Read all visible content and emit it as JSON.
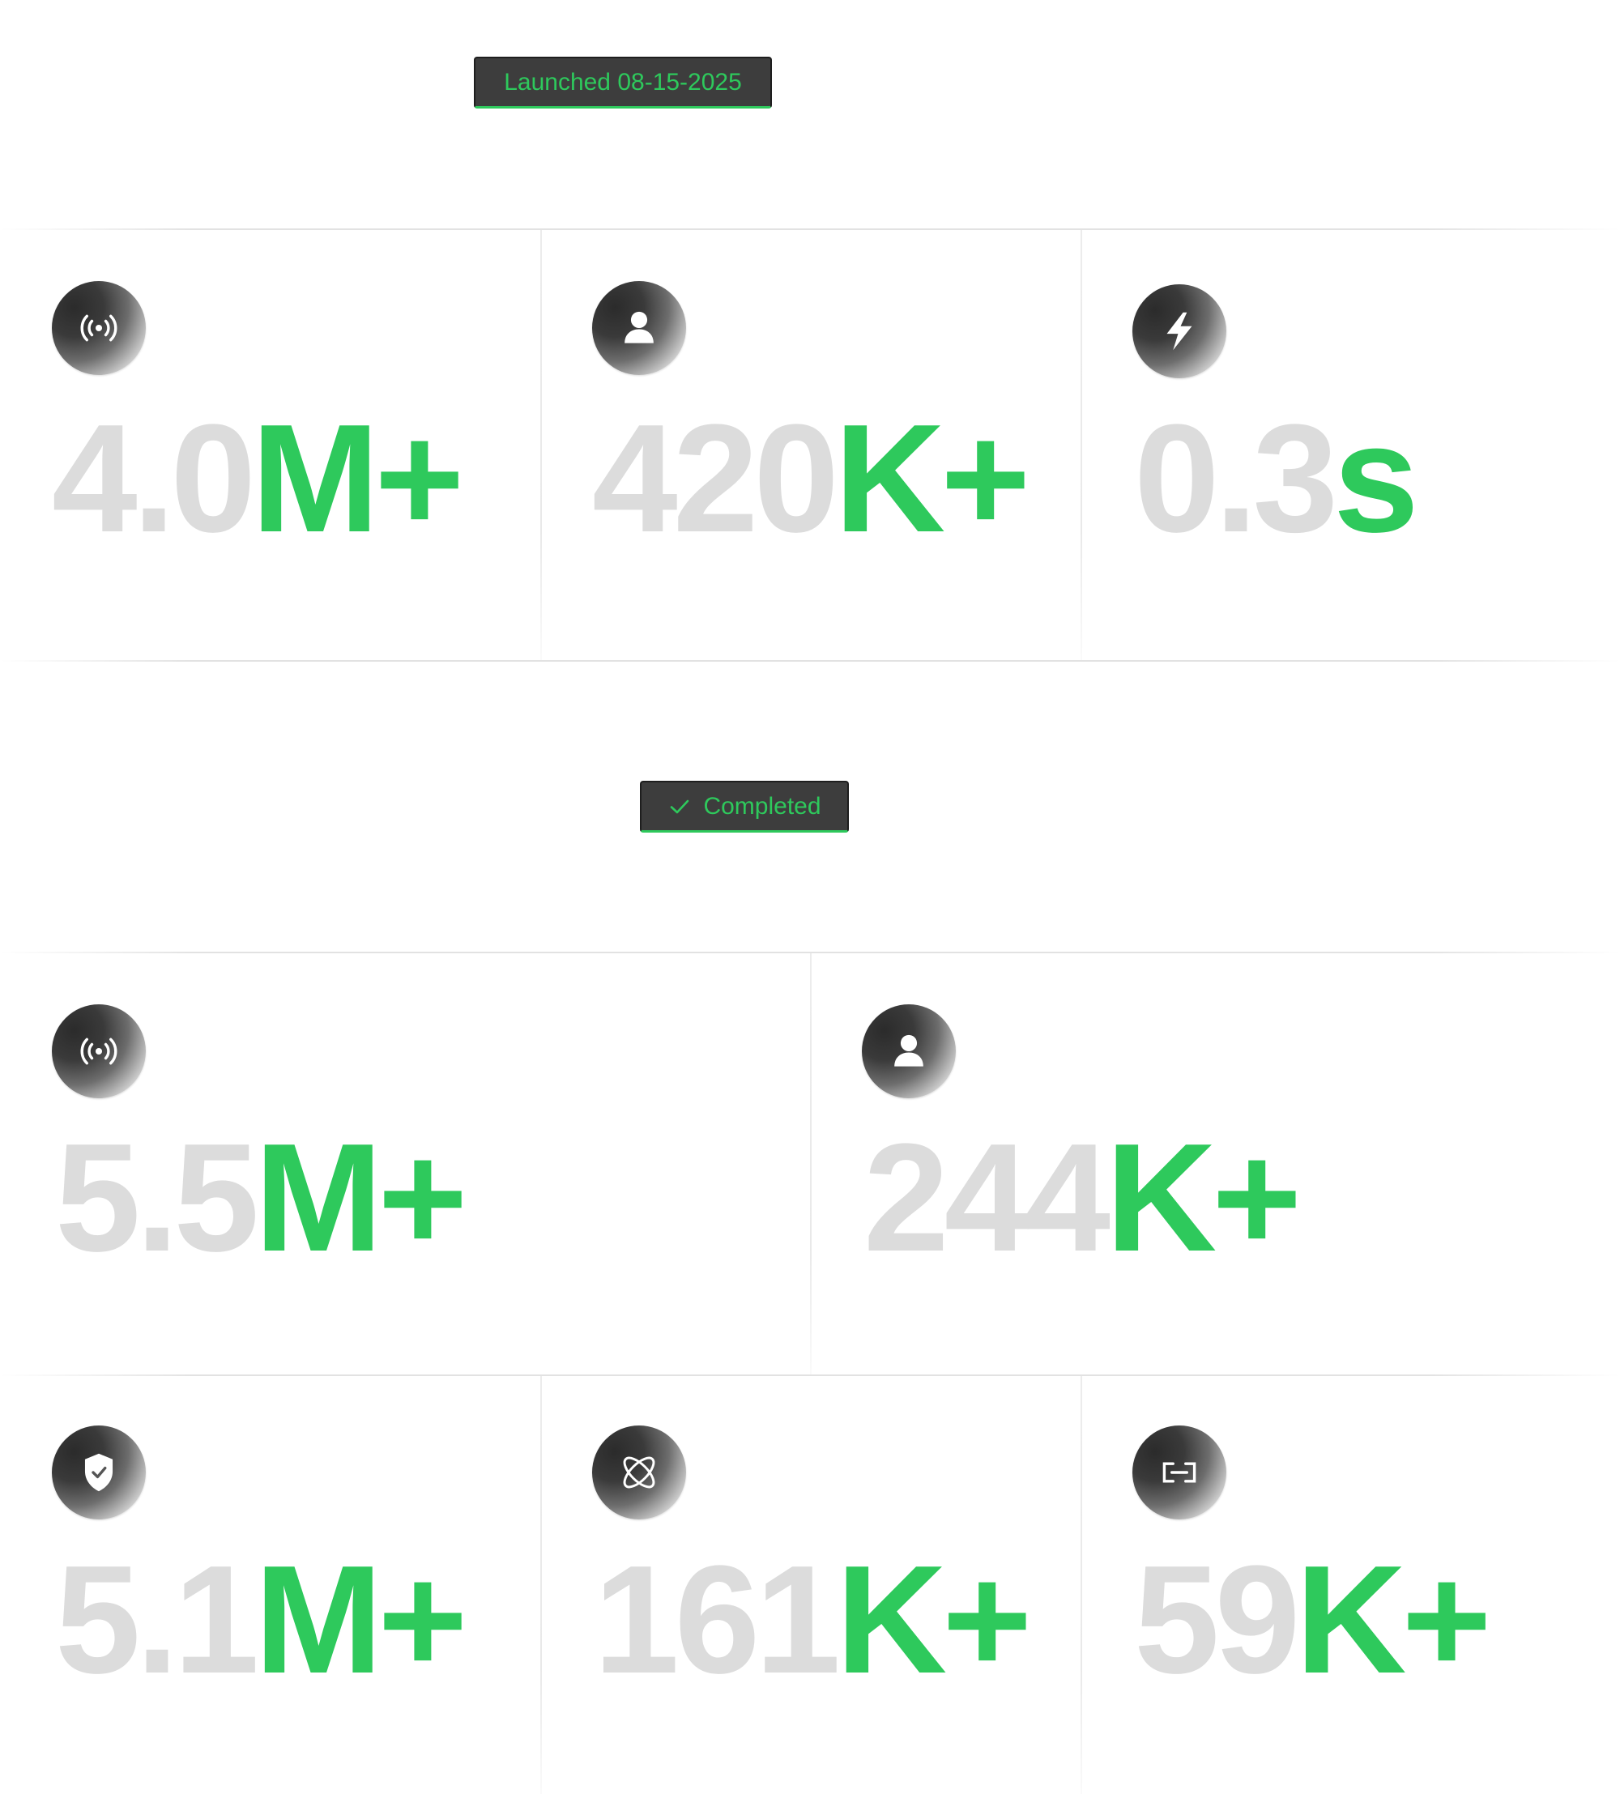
{
  "top_section": {
    "badge": {
      "label": "Launched 08-15-2025"
    },
    "stats": [
      {
        "icon": "broadcast-icon",
        "number": "4.0",
        "suffix": "M+"
      },
      {
        "icon": "user-icon",
        "number": "420",
        "suffix": "K+"
      },
      {
        "icon": "lightning-icon",
        "number": "0.3",
        "suffix": "s"
      }
    ]
  },
  "bottom_section": {
    "badge": {
      "icon": "check-icon",
      "label": "Completed"
    },
    "stats_row1": [
      {
        "icon": "broadcast-icon",
        "number": "5.5",
        "suffix": "M+"
      },
      {
        "icon": "user-icon",
        "number": "244",
        "suffix": "K+"
      }
    ],
    "stats_row2": [
      {
        "icon": "shield-check-icon",
        "number": "5.1",
        "suffix": "M+"
      },
      {
        "icon": "atom-icon",
        "number": "161",
        "suffix": "K+"
      },
      {
        "icon": "link-icon",
        "number": "59",
        "suffix": "K+"
      }
    ]
  },
  "colors": {
    "accent_green": "#2ec95c",
    "number_gray": "#dcdcdc",
    "badge_bg": "#3d3d3d"
  }
}
